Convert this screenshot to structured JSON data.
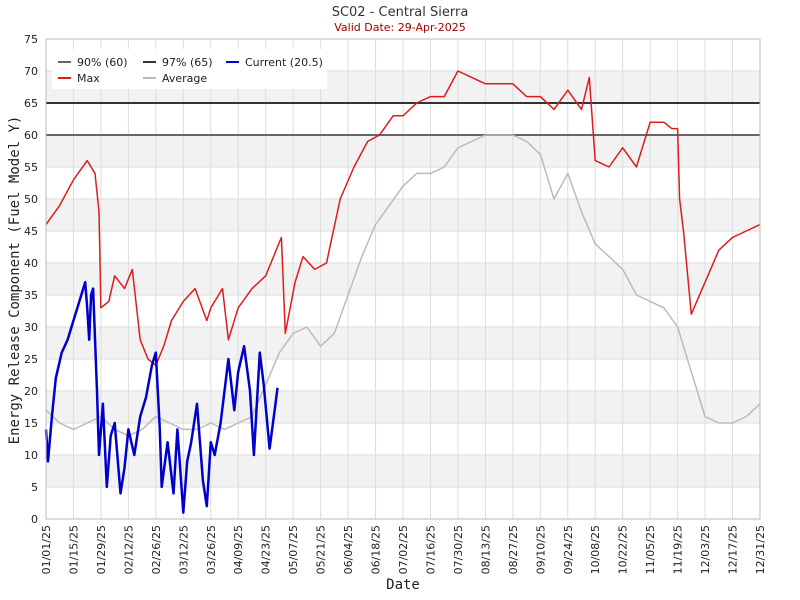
{
  "chart_data": {
    "type": "line",
    "title": "SC02 - Central Sierra",
    "subtitle": "Valid Date: 29-Apr-2025",
    "xlabel": "Date",
    "ylabel": "Energy Release Component (Fuel Model Y)",
    "ylim": [
      0,
      75
    ],
    "yticks": [
      0,
      5,
      10,
      15,
      20,
      25,
      30,
      35,
      40,
      45,
      50,
      55,
      60,
      65,
      70,
      75
    ],
    "xticks": [
      "01/01/25",
      "01/15/25",
      "01/29/25",
      "02/12/25",
      "02/26/25",
      "03/12/25",
      "03/26/25",
      "04/09/25",
      "04/23/25",
      "05/07/25",
      "05/21/25",
      "06/04/25",
      "06/18/25",
      "07/02/25",
      "07/16/25",
      "07/30/25",
      "08/13/25",
      "08/27/25",
      "09/10/25",
      "09/24/25",
      "10/08/25",
      "10/22/25",
      "11/05/25",
      "11/19/25",
      "12/03/25",
      "12/17/25",
      "12/31/25"
    ],
    "legend_placement": "top-left",
    "grid": true,
    "reference_lines": [
      {
        "name": "90% (60)",
        "value": 60,
        "color": "#666666"
      },
      {
        "name": "97% (65)",
        "value": 65,
        "color": "#333333"
      }
    ],
    "series": [
      {
        "name": "Max",
        "color": "#dd1c1c",
        "x": [
          "01/01/25",
          "01/08/25",
          "01/15/25",
          "01/22/25",
          "01/26/25",
          "01/28/25",
          "01/29/25",
          "02/02/25",
          "02/05/25",
          "02/10/25",
          "02/14/25",
          "02/18/25",
          "02/22/25",
          "02/26/25",
          "03/02/25",
          "03/06/25",
          "03/12/25",
          "03/18/25",
          "03/24/25",
          "03/26/25",
          "04/01/25",
          "04/04/25",
          "04/09/25",
          "04/16/25",
          "04/23/25",
          "05/01/25",
          "05/03/25",
          "05/08/25",
          "05/12/25",
          "05/18/25",
          "05/24/25",
          "05/31/25",
          "06/07/25",
          "06/14/25",
          "06/20/25",
          "06/27/25",
          "07/02/25",
          "07/09/25",
          "07/16/25",
          "07/23/25",
          "07/30/25",
          "08/06/25",
          "08/13/25",
          "08/20/25",
          "08/27/25",
          "09/03/25",
          "09/10/25",
          "09/17/25",
          "09/24/25",
          "10/01/25",
          "10/05/25",
          "10/08/25",
          "10/15/25",
          "10/22/25",
          "10/29/25",
          "11/05/25",
          "11/12/25",
          "11/16/25",
          "11/19/25",
          "11/20/25",
          "11/22/25",
          "11/26/25",
          "12/03/25",
          "12/10/25",
          "12/17/25",
          "12/24/25",
          "12/31/25"
        ],
        "values": [
          46,
          49,
          53,
          56,
          54,
          48,
          33,
          34,
          38,
          36,
          39,
          28,
          25,
          24,
          27,
          31,
          34,
          36,
          31,
          33,
          36,
          28,
          33,
          36,
          38,
          44,
          29,
          37,
          41,
          39,
          40,
          50,
          55,
          59,
          60,
          63,
          63,
          65,
          66,
          66,
          70,
          69,
          68,
          68,
          68,
          66,
          66,
          64,
          67,
          64,
          69,
          56,
          55,
          58,
          55,
          62,
          62,
          61,
          61,
          50,
          45,
          32,
          37,
          42,
          44,
          45,
          46
        ]
      },
      {
        "name": "Average",
        "color": "#bbbbbb",
        "x": [
          "01/01/25",
          "01/08/25",
          "01/15/25",
          "01/22/25",
          "01/29/25",
          "02/05/25",
          "02/12/25",
          "02/19/25",
          "02/26/25",
          "03/05/25",
          "03/12/25",
          "03/19/25",
          "03/26/25",
          "04/02/25",
          "04/09/25",
          "04/16/25",
          "04/23/25",
          "04/30/25",
          "05/07/25",
          "05/14/25",
          "05/21/25",
          "05/28/25",
          "06/04/25",
          "06/11/25",
          "06/18/25",
          "06/25/25",
          "07/02/25",
          "07/09/25",
          "07/16/25",
          "07/23/25",
          "07/30/25",
          "08/06/25",
          "08/13/25",
          "08/20/25",
          "08/27/25",
          "09/03/25",
          "09/10/25",
          "09/17/25",
          "09/24/25",
          "10/01/25",
          "10/08/25",
          "10/15/25",
          "10/22/25",
          "10/29/25",
          "11/05/25",
          "11/12/25",
          "11/19/25",
          "11/26/25",
          "12/03/25",
          "12/10/25",
          "12/17/25",
          "12/24/25",
          "12/31/25"
        ],
        "values": [
          17,
          15,
          14,
          15,
          16,
          14,
          13,
          14,
          16,
          15,
          14,
          14,
          15,
          14,
          15,
          16,
          21,
          26,
          29,
          30,
          27,
          29,
          35,
          41,
          46,
          49,
          52,
          54,
          54,
          55,
          58,
          59,
          60,
          60,
          60,
          59,
          57,
          50,
          54,
          48,
          43,
          41,
          39,
          35,
          34,
          33,
          30,
          23,
          16,
          15,
          15,
          16,
          18
        ]
      },
      {
        "name": "Current (20.5)",
        "color": "#0000cc",
        "x": [
          "01/01/25",
          "01/02/25",
          "01/04/25",
          "01/06/25",
          "01/09/25",
          "01/12/25",
          "01/16/25",
          "01/19/25",
          "01/21/25",
          "01/22/25",
          "01/23/25",
          "01/24/25",
          "01/25/25",
          "01/27/25",
          "01/28/25",
          "01/30/25",
          "02/01/25",
          "02/03/25",
          "02/05/25",
          "02/08/25",
          "02/10/25",
          "02/12/25",
          "02/15/25",
          "02/18/25",
          "02/21/25",
          "02/24/25",
          "02/26/25",
          "02/28/25",
          "03/01/25",
          "03/04/25",
          "03/07/25",
          "03/09/25",
          "03/12/25",
          "03/14/25",
          "03/16/25",
          "03/19/25",
          "03/22/25",
          "03/24/25",
          "03/26/25",
          "03/28/25",
          "03/31/25",
          "04/02/25",
          "04/04/25",
          "04/07/25",
          "04/09/25",
          "04/12/25",
          "04/15/25",
          "04/17/25",
          "04/20/25",
          "04/22/25",
          "04/25/25",
          "04/28/25",
          "04/29/25"
        ],
        "values": [
          14,
          9,
          16,
          22,
          26,
          28,
          32,
          35,
          37,
          33,
          28,
          35,
          36,
          20,
          10,
          18,
          5,
          13,
          15,
          4,
          8,
          14,
          10,
          16,
          19,
          24,
          26,
          14,
          5,
          12,
          4,
          14,
          1,
          9,
          12,
          18,
          6,
          2,
          12,
          10,
          15,
          20,
          25,
          17,
          23,
          27,
          20,
          10,
          26,
          21,
          11,
          18,
          20.5
        ]
      }
    ]
  }
}
